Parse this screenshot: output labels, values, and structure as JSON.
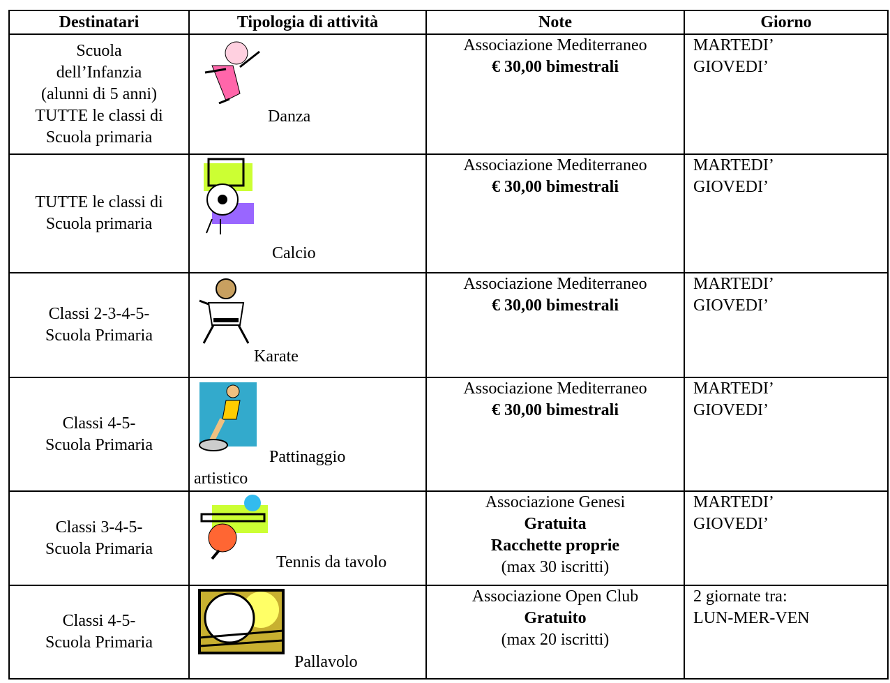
{
  "table": {
    "headers": [
      "Destinatari",
      "Tipologia  di attività",
      "Note",
      "Giorno"
    ],
    "rows": [
      {
        "recipients": [
          "Scuola",
          "dell’Infanzia",
          "(alunni di 5 anni)",
          "TUTTE le classi di",
          "Scuola primaria"
        ],
        "activity": [
          "Danza"
        ],
        "note": {
          "org": "Associazione  Mediterraneo",
          "terms": [
            "€ 30,00 bimestrali"
          ]
        },
        "days": [
          "MARTEDI’",
          "GIOVEDI’"
        ]
      },
      {
        "recipients": [
          "TUTTE le classi di",
          "Scuola primaria"
        ],
        "activity": [
          "Calcio"
        ],
        "note": {
          "org": "Associazione  Mediterraneo",
          "terms": [
            "€ 30,00 bimestrali"
          ]
        },
        "days": [
          "MARTEDI’",
          "GIOVEDI’"
        ]
      },
      {
        "recipients": [
          "Classi 2-3-4-5-",
          "Scuola Primaria"
        ],
        "activity": [
          "Karate"
        ],
        "note": {
          "org": "Associazione  Mediterraneo",
          "terms": [
            "€ 30,00 bimestrali"
          ]
        },
        "days": [
          "MARTEDI’",
          "GIOVEDI’"
        ]
      },
      {
        "recipients": [
          "Classi 4-5-",
          "Scuola Primaria"
        ],
        "activity": [
          "Pattinaggio",
          "artistico"
        ],
        "note": {
          "org": "Associazione  Mediterraneo",
          "terms": [
            "€ 30,00 bimestrali"
          ]
        },
        "days": [
          "MARTEDI’",
          "GIOVEDI’"
        ]
      },
      {
        "recipients": [
          "Classi 3-4-5-",
          "Scuola Primaria"
        ],
        "activity": [
          "Tennis da tavolo"
        ],
        "note": {
          "org": "Associazione  Genesi",
          "terms": [
            "Gratuita",
            "Racchette proprie"
          ],
          "limit": "(max 30 iscritti)"
        },
        "days": [
          "MARTEDI’",
          "GIOVEDI’"
        ]
      },
      {
        "recipients": [
          "Classi 4-5-",
          "Scuola Primaria"
        ],
        "activity": [
          "Pallavolo"
        ],
        "note": {
          "org": "Associazione  Open Club",
          "terms": [
            "Gratuito"
          ],
          "limit": "(max 20 iscritti)"
        },
        "days": [
          "2 giornate tra:",
          "LUN-MER-VEN"
        ]
      }
    ]
  }
}
